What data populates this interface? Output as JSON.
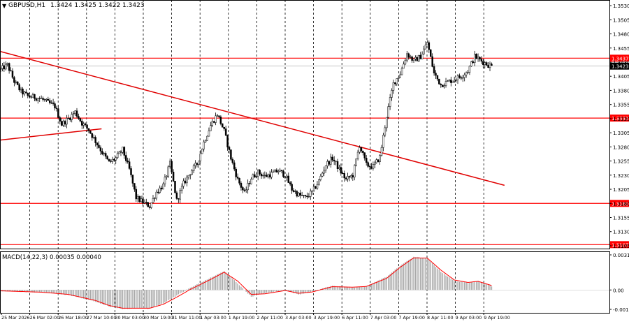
{
  "header": {
    "symbol": "GBPUSD,H1",
    "ohlc": "1.3424 1.3425 1.3422 1.3423"
  },
  "macd_label": "MACD(14,22,3) 0.00035 0.00040",
  "colors": {
    "background": "#ffffff",
    "candle": "#000000",
    "level_line": "#ff0000",
    "trend_line": "#e00000",
    "grid": "#000000",
    "histogram": "#a8a8a8",
    "signal": "#ff0000",
    "current_price_label": "#000000"
  },
  "chart_data": [
    {
      "type": "candlestick",
      "title": "GBPUSD,H1",
      "x_tick_labels": [
        "25 Mar 2026",
        "26 Mar 02:00",
        "26 Mar 18:00",
        "27 Mar 10:00",
        "30 Mar 03:00",
        "30 Mar 19:00",
        "31 Mar 11:00",
        "1 Apr 03:00",
        "1 Apr 19:00",
        "2 Apr 11:00",
        "3 Apr 03:00",
        "3 Apr 19:00",
        "6 Apr 11:00",
        "7 Apr 03:00",
        "7 Apr 19:00",
        "8 Apr 11:00",
        "9 Apr 03:00",
        "9 Apr 19:00"
      ],
      "y_tick_labels": [
        "1.3530",
        "1.3505",
        "1.3480",
        "1.3455",
        "1.3430",
        "1.3405",
        "1.3380",
        "1.3355",
        "1.3330",
        "1.3305",
        "1.3280",
        "1.3255",
        "1.3230",
        "1.3205",
        "1.3180",
        "1.3155",
        "1.3130",
        "1.3105"
      ],
      "y_range": [
        1.31,
        1.354
      ],
      "x_range": [
        0,
        360
      ],
      "levels": [
        {
          "value": 1.3437,
          "label": "1.3437"
        },
        {
          "value": 1.3331,
          "label": "1.3331"
        },
        {
          "value": 1.318,
          "label": "1.3180"
        },
        {
          "value": 1.3107,
          "label": "1.3107"
        }
      ],
      "current_price": {
        "value": 1.3423,
        "label": "1.3423"
      },
      "trendlines": [
        {
          "from": [
            0,
            1.3449
          ],
          "to": [
            298,
            1.3212
          ]
        },
        {
          "from": [
            0,
            1.3292
          ],
          "to": [
            60,
            1.3312
          ]
        }
      ],
      "path_points": [
        [
          0,
          1.3417
        ],
        [
          4,
          1.3425
        ],
        [
          8,
          1.3396
        ],
        [
          12,
          1.3378
        ],
        [
          16,
          1.337
        ],
        [
          20,
          1.3368
        ],
        [
          24,
          1.3365
        ],
        [
          28,
          1.3358
        ],
        [
          32,
          1.3352
        ],
        [
          36,
          1.332
        ],
        [
          40,
          1.333
        ],
        [
          44,
          1.3342
        ],
        [
          48,
          1.3322
        ],
        [
          52,
          1.331
        ],
        [
          56,
          1.329
        ],
        [
          60,
          1.327
        ],
        [
          64,
          1.3252
        ],
        [
          68,
          1.326
        ],
        [
          72,
          1.3275
        ],
        [
          76,
          1.324
        ],
        [
          80,
          1.319
        ],
        [
          84,
          1.3182
        ],
        [
          88,
          1.3175
        ],
        [
          92,
          1.32
        ],
        [
          96,
          1.3212
        ],
        [
          100,
          1.325
        ],
        [
          104,
          1.3185
        ],
        [
          108,
          1.3215
        ],
        [
          112,
          1.3235
        ],
        [
          116,
          1.325
        ],
        [
          120,
          1.3288
        ],
        [
          124,
          1.3318
        ],
        [
          128,
          1.3338
        ],
        [
          132,
          1.3308
        ],
        [
          136,
          1.326
        ],
        [
          140,
          1.3222
        ],
        [
          144,
          1.3198
        ],
        [
          148,
          1.3225
        ],
        [
          152,
          1.3235
        ],
        [
          156,
          1.3228
        ],
        [
          160,
          1.3232
        ],
        [
          164,
          1.3238
        ],
        [
          168,
          1.323
        ],
        [
          172,
          1.3205
        ],
        [
          176,
          1.3195
        ],
        [
          180,
          1.319
        ],
        [
          184,
          1.32
        ],
        [
          188,
          1.322
        ],
        [
          192,
          1.3248
        ],
        [
          196,
          1.326
        ],
        [
          200,
          1.324
        ],
        [
          204,
          1.3222
        ],
        [
          208,
          1.323
        ],
        [
          212,
          1.3283
        ],
        [
          216,
          1.3248
        ],
        [
          220,
          1.3245
        ],
        [
          224,
          1.3262
        ],
        [
          228,
          1.3335
        ],
        [
          232,
          1.3392
        ],
        [
          236,
          1.341
        ],
        [
          240,
          1.3445
        ],
        [
          244,
          1.3432
        ],
        [
          248,
          1.344
        ],
        [
          252,
          1.3465
        ],
        [
          256,
          1.341
        ],
        [
          260,
          1.339
        ],
        [
          264,
          1.3395
        ],
        [
          268,
          1.34
        ],
        [
          272,
          1.3405
        ],
        [
          276,
          1.3415
        ],
        [
          280,
          1.344
        ],
        [
          284,
          1.3432
        ],
        [
          288,
          1.3425
        ],
        [
          290,
          1.3423
        ]
      ],
      "indicator": {
        "name": "MACD(14,22,3)",
        "y_tick_labels": [
          "0.00317",
          "0.00",
          "-0.00175"
        ],
        "y_range": [
          -0.00175,
          0.00317
        ],
        "histogram_keyframes": [
          [
            0,
            -0.0001
          ],
          [
            24,
            -0.00022
          ],
          [
            40,
            -0.00045
          ],
          [
            56,
            -0.00105
          ],
          [
            64,
            -0.0015
          ],
          [
            72,
            -0.00172
          ],
          [
            80,
            -0.00165
          ],
          [
            88,
            -0.0017
          ],
          [
            96,
            -0.0012
          ],
          [
            104,
            -0.0005
          ],
          [
            112,
            0.0002
          ],
          [
            124,
            0.0011
          ],
          [
            132,
            0.0017
          ],
          [
            140,
            0.0006
          ],
          [
            148,
            -0.0006
          ],
          [
            156,
            -0.0003
          ],
          [
            168,
            0.0
          ],
          [
            176,
            -0.0004
          ],
          [
            184,
            -0.00015
          ],
          [
            196,
            0.0004
          ],
          [
            208,
            0.0002
          ],
          [
            216,
            0.00035
          ],
          [
            228,
            0.0012
          ],
          [
            236,
            0.0022
          ],
          [
            244,
            0.003
          ],
          [
            252,
            0.00285
          ],
          [
            260,
            0.00165
          ],
          [
            268,
            0.0008
          ],
          [
            276,
            0.00065
          ],
          [
            282,
            0.0008
          ],
          [
            290,
            0.00035
          ]
        ],
        "signal_keyframes": [
          [
            0,
            -8e-05
          ],
          [
            24,
            -0.0002
          ],
          [
            40,
            -0.0004
          ],
          [
            56,
            -0.00095
          ],
          [
            64,
            -0.0014
          ],
          [
            72,
            -0.00165
          ],
          [
            80,
            -0.00165
          ],
          [
            88,
            -0.00165
          ],
          [
            96,
            -0.0013
          ],
          [
            104,
            -0.00065
          ],
          [
            112,
            5e-05
          ],
          [
            124,
            0.00095
          ],
          [
            132,
            0.0016
          ],
          [
            140,
            0.0008
          ],
          [
            148,
            -0.0004
          ],
          [
            156,
            -0.00035
          ],
          [
            168,
            -5e-05
          ],
          [
            176,
            -0.0003
          ],
          [
            184,
            -0.00018
          ],
          [
            196,
            0.0003
          ],
          [
            208,
            0.00025
          ],
          [
            216,
            0.00032
          ],
          [
            228,
            0.00105
          ],
          [
            236,
            0.00205
          ],
          [
            244,
            0.0029
          ],
          [
            252,
            0.00288
          ],
          [
            260,
            0.0018
          ],
          [
            268,
            0.0009
          ],
          [
            276,
            0.00068
          ],
          [
            282,
            0.00078
          ],
          [
            290,
            0.0004
          ]
        ]
      }
    }
  ]
}
